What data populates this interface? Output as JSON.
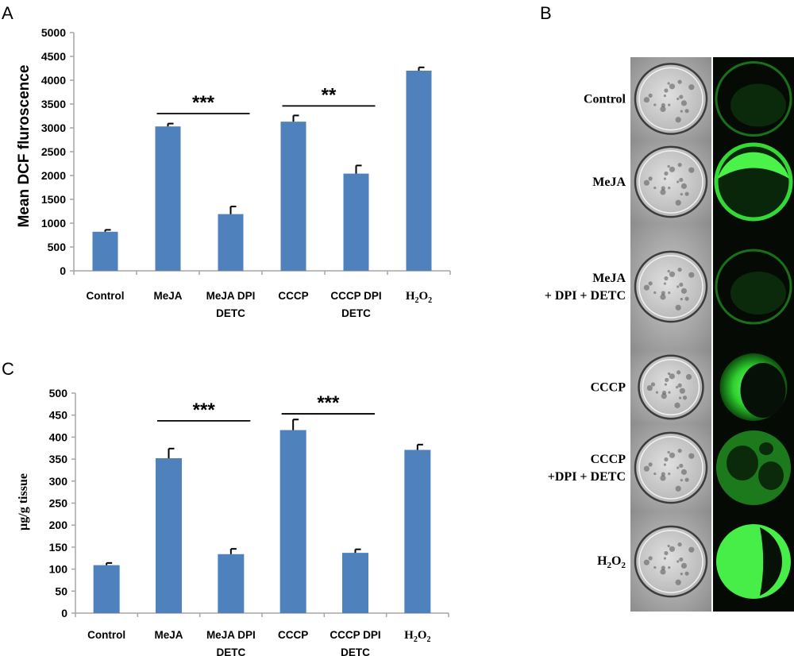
{
  "panel_letters": {
    "a": "A",
    "b": "B",
    "c": "C"
  },
  "colors": {
    "bar": "#4f81bd",
    "axis": "#a6a6a6",
    "error": "#000000",
    "fluor": "#35d935",
    "dark": "#050a05"
  },
  "chart_data": [
    {
      "type": "bar",
      "panel": "A",
      "ylabel": "Mean DCF  fluroscence",
      "xlabel": "",
      "ylim": [
        0,
        5000
      ],
      "yticks": [
        "0",
        "500",
        "1000",
        "1500",
        "2000",
        "2500",
        "3000",
        "3500",
        "4000",
        "4500",
        "5000"
      ],
      "categories": [
        {
          "lines": [
            "Control"
          ]
        },
        {
          "lines": [
            "MeJA"
          ]
        },
        {
          "lines": [
            "MeJA DPI",
            "DETC"
          ]
        },
        {
          "lines": [
            "CCCP"
          ]
        },
        {
          "lines": [
            "CCCP DPI",
            "DETC"
          ]
        },
        {
          "lines": [
            "H",
            "2",
            "O",
            "2"
          ],
          "formula": true
        }
      ],
      "values": [
        820,
        3030,
        1190,
        3130,
        2040,
        4200
      ],
      "errors": [
        40,
        60,
        160,
        130,
        170,
        70
      ],
      "grid": false,
      "significance": [
        {
          "from": 1,
          "to": 2,
          "label": "***",
          "y": 3300
        },
        {
          "from": 3,
          "to": 4,
          "label": "**",
          "y": 3460
        }
      ]
    },
    {
      "type": "bar",
      "panel": "C",
      "ylabel": "µg/g tissue",
      "xlabel": "",
      "ylim": [
        0,
        500
      ],
      "yticks": [
        "0",
        "50",
        "100",
        "150",
        "200",
        "250",
        "300",
        "350",
        "400",
        "450",
        "500"
      ],
      "categories": [
        {
          "lines": [
            "Control"
          ]
        },
        {
          "lines": [
            "MeJA"
          ]
        },
        {
          "lines": [
            "MeJA DPI",
            "DETC"
          ]
        },
        {
          "lines": [
            "CCCP"
          ]
        },
        {
          "lines": [
            "CCCP DPI",
            "DETC"
          ]
        },
        {
          "lines": [
            "H",
            "2",
            "O",
            "2"
          ],
          "formula": true
        }
      ],
      "values": [
        109,
        352,
        134,
        416,
        137,
        371
      ],
      "errors": [
        5,
        22,
        12,
        24,
        8,
        12
      ],
      "grid": false,
      "significance": [
        {
          "from": 1,
          "to": 2,
          "label": "***",
          "y": 437
        },
        {
          "from": 3,
          "to": 4,
          "label": "***",
          "y": 453
        }
      ]
    }
  ],
  "micrographs": {
    "rows": [
      {
        "label_lines": [
          "Control"
        ],
        "fluor": "dim-ring"
      },
      {
        "label_lines": [
          "MeJA"
        ],
        "fluor": "bright-top"
      },
      {
        "label_lines": [
          "MeJA",
          "+ DPI + DETC"
        ],
        "fluor": "dim-partial"
      },
      {
        "label_lines": [
          "CCCP"
        ],
        "fluor": "bright-crescent"
      },
      {
        "label_lines": [
          "CCCP",
          "+DPI + DETC"
        ],
        "fluor": "vacuoles"
      },
      {
        "label_lines": [
          "H",
          "2",
          "O",
          "2"
        ],
        "fluor": "bright-half",
        "formula": true
      }
    ]
  }
}
